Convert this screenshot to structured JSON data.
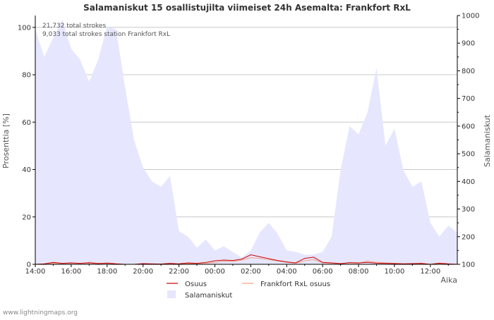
{
  "chart_data": {
    "type": "area",
    "title": "Salamaniskut 15 osallistujilta viimeiset 24h Asemalta: Frankfort RxL",
    "xlabel": "Aika",
    "ylabel_left": "Prosenttia   [%]",
    "ylabel_right": "Salamaniskut",
    "annotations": [
      "21,732 total strokes",
      "9,033 total strokes station Frankfort RxL"
    ],
    "x_ticks": [
      "14:00",
      "16:00",
      "18:00",
      "20:00",
      "22:00",
      "00:00",
      "02:00",
      "04:00",
      "06:00",
      "08:00",
      "10:00",
      "12:00"
    ],
    "x_range_hours": [
      0,
      23.5
    ],
    "y_left": {
      "ticks": [
        0,
        20,
        40,
        60,
        80,
        100
      ],
      "range": [
        0,
        105
      ]
    },
    "y_right": {
      "ticks": [
        100,
        200,
        300,
        400,
        500,
        600,
        700,
        800,
        900,
        1000
      ],
      "range": [
        100,
        1000
      ]
    },
    "legend": [
      "Osuus",
      "Frankfort RxL osuus",
      "Salamaniskut"
    ],
    "colors": {
      "osuus": "#cc0000",
      "station_share": "#f0a080",
      "strokes_fill": "#e6e6ff",
      "grid": "#c8c8c8",
      "axis": "#000000"
    },
    "series": [
      {
        "name": "Salamaniskut",
        "axis": "right",
        "x_hours": [
          0,
          0.5,
          1,
          1.5,
          2,
          2.5,
          3,
          3.5,
          4,
          4.5,
          5,
          5.5,
          6,
          6.5,
          7,
          7.5,
          8,
          8.5,
          9,
          9.5,
          10,
          10.5,
          11,
          11.5,
          12,
          12.5,
          13,
          13.5,
          14,
          14.5,
          15,
          15.5,
          16,
          16.5,
          17,
          17.5,
          18,
          18.5,
          19,
          19.5,
          20,
          20.5,
          21,
          21.5,
          22,
          22.5,
          23,
          23.5
        ],
        "values": [
          950,
          850,
          920,
          985,
          880,
          840,
          760,
          840,
          960,
          950,
          740,
          550,
          450,
          400,
          380,
          420,
          220,
          200,
          160,
          190,
          150,
          165,
          145,
          125,
          150,
          215,
          250,
          210,
          150,
          145,
          135,
          135,
          145,
          200,
          440,
          600,
          570,
          650,
          810,
          530,
          590,
          440,
          380,
          400,
          250,
          200,
          240,
          215
        ]
      },
      {
        "name": "Osuus",
        "axis": "left",
        "x_hours": [
          0,
          0.5,
          1,
          1.5,
          2,
          2.5,
          3,
          3.5,
          4,
          4.5,
          5,
          5.5,
          6,
          6.5,
          7,
          7.5,
          8,
          8.5,
          9,
          9.5,
          10,
          10.5,
          11,
          11.5,
          12,
          12.5,
          13,
          13.5,
          14,
          14.5,
          15,
          15.5,
          16,
          16.5,
          17,
          17.5,
          18,
          18.5,
          19,
          19.5,
          20,
          20.5,
          21,
          21.5,
          22,
          22.5,
          23,
          23.5
        ],
        "values": [
          0,
          0.2,
          0.8,
          0.4,
          0.6,
          0.4,
          0.6,
          0.3,
          0.5,
          0.2,
          0,
          0,
          0.3,
          0.2,
          0.1,
          0.4,
          0.2,
          0.6,
          0.4,
          0.8,
          1.5,
          1.8,
          1.6,
          2.2,
          4,
          3.2,
          2.4,
          1.6,
          1,
          0.6,
          2.5,
          3,
          0.8,
          0.6,
          0.3,
          0.7,
          0.6,
          0.8,
          0.5,
          0.4,
          0.3,
          0.2,
          0.3,
          0.4,
          0,
          0.5,
          0.2,
          0
        ]
      },
      {
        "name": "Frankfort RxL osuus",
        "axis": "left",
        "x_hours": [
          0,
          0.5,
          1,
          1.5,
          2,
          2.5,
          3,
          3.5,
          4,
          4.5,
          5,
          5.5,
          6,
          6.5,
          7,
          7.5,
          8,
          8.5,
          9,
          9.5,
          10,
          10.5,
          11,
          11.5,
          12,
          12.5,
          13,
          13.5,
          14,
          14.5,
          15,
          15.5,
          16,
          16.5,
          17,
          17.5,
          18,
          18.5,
          19,
          19.5,
          20,
          20.5,
          21,
          21.5,
          22,
          22.5,
          23,
          23.5
        ],
        "values": [
          0,
          0.2,
          0.4,
          0.3,
          0.5,
          0.3,
          0.9,
          0.4,
          0.6,
          0.3,
          0,
          0,
          0.2,
          0.1,
          0.1,
          0.3,
          0.1,
          0.3,
          0.3,
          0.5,
          0.8,
          1.3,
          1.2,
          1.8,
          2.8,
          2.5,
          2,
          1.4,
          0.8,
          0.5,
          1.5,
          2,
          0.6,
          0.5,
          0.2,
          0.6,
          0.4,
          1.4,
          0.8,
          0.6,
          0.4,
          0.3,
          0.2,
          0.3,
          0,
          0.3,
          0.1,
          0
        ]
      }
    ]
  },
  "footer": {
    "credit": "www.lightningmaps.org"
  }
}
